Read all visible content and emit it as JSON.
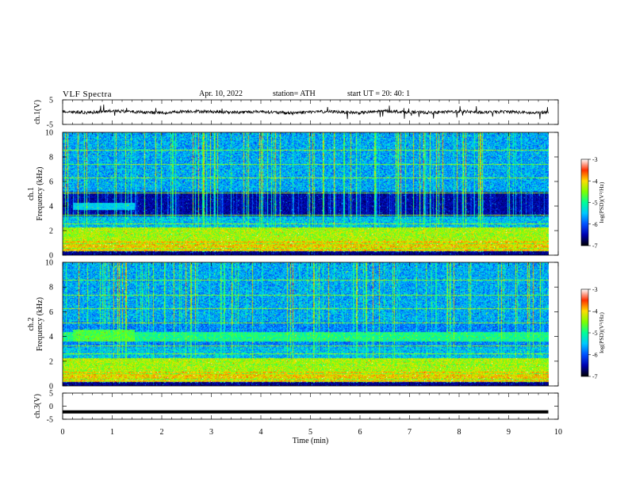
{
  "header": {
    "title": "VLF  Spectra",
    "date": "Apr. 10, 2022",
    "station": "station= ATH",
    "start": "start  UT  =   20: 40: 1"
  },
  "colors": {
    "background": "#ffffff",
    "spectrogram_background": "#000a3a",
    "waveform": "#000000",
    "colormap": [
      "#000000",
      "#0000b0",
      "#0050ff",
      "#00c8ff",
      "#00ff96",
      "#7dff00",
      "#ffdc00",
      "#ff3000",
      "#ffffff"
    ]
  },
  "chart_data": [
    {
      "type": "line",
      "ylabel": "ch.1(V)",
      "ylim": [
        -5,
        5
      ],
      "yticks": [
        "5",
        "-5"
      ],
      "xlim": [
        0,
        10
      ],
      "x": [
        0,
        0.5,
        1,
        1.5,
        2,
        2.5,
        3,
        3.5,
        4,
        4.5,
        5,
        5.5,
        6,
        6.5,
        7,
        7.5,
        8,
        8.5,
        9,
        9.5,
        9.8
      ],
      "values": [
        0.3,
        -0.2,
        0.5,
        0.1,
        -0.3,
        0.4,
        0.2,
        -0.1,
        0.3,
        -0.4,
        0.1,
        0.2,
        -0.3,
        0.5,
        0,
        -0.2,
        0.4,
        -0.1,
        0.2,
        -0.4,
        0.1
      ]
    },
    {
      "type": "heatmap",
      "ylabel": "ch.1\nFrequency (kHz)",
      "ylim": [
        0,
        10
      ],
      "yticks": [
        "0",
        "2",
        "4",
        "6",
        "8",
        "10"
      ],
      "xlim": [
        0,
        10
      ],
      "data_end_min": 9.8,
      "colorbar": {
        "label": "log(PSD)(V²/Hz)",
        "range": [
          -7,
          -3
        ],
        "ticks": [
          "-3",
          "-4",
          "-5",
          "-6",
          "-7"
        ]
      },
      "features": [
        {
          "name": "broadband low-frequency emission",
          "freq_khz": [
            0.6,
            2.2
          ],
          "log_psd": -5
        },
        {
          "name": "dark band",
          "freq_khz": [
            3.3,
            5.2
          ],
          "log_psd": -7
        },
        {
          "name": "sferics",
          "freq_khz": [
            0,
            10
          ],
          "log_psd": -4.5
        }
      ]
    },
    {
      "type": "heatmap",
      "ylabel": "ch.2\nFrequency (kHz)",
      "ylim": [
        0,
        10
      ],
      "yticks": [
        "0",
        "2",
        "4",
        "6",
        "8",
        "10"
      ],
      "xlim": [
        0,
        10
      ],
      "data_end_min": 9.8,
      "colorbar": {
        "label": "log(PSD)(V²/Hz)",
        "range": [
          -7,
          -3
        ],
        "ticks": [
          "-3",
          "-4",
          "-5",
          "-6",
          "-7"
        ]
      },
      "features": [
        {
          "name": "broadband low-frequency emission",
          "freq_khz": [
            0.5,
            2.4
          ],
          "log_psd": -4.8
        },
        {
          "name": "band near 4 kHz",
          "freq_khz": [
            3.6,
            4.4
          ],
          "log_psd": -5.5
        },
        {
          "name": "sferics",
          "freq_khz": [
            0,
            10
          ],
          "log_psd": -4.5
        }
      ]
    },
    {
      "type": "line",
      "ylabel": "ch.3(V)",
      "ylim": [
        -5,
        5
      ],
      "yticks": [
        "5",
        "0",
        "-5"
      ],
      "xlim": [
        0,
        10
      ],
      "xlabel": "Time  (min)",
      "xticks": [
        "0",
        "1",
        "2",
        "3",
        "4",
        "5",
        "6",
        "7",
        "8",
        "9",
        "10"
      ],
      "x": [
        0,
        9.8
      ],
      "values": [
        -2.2,
        -2.2
      ]
    }
  ]
}
